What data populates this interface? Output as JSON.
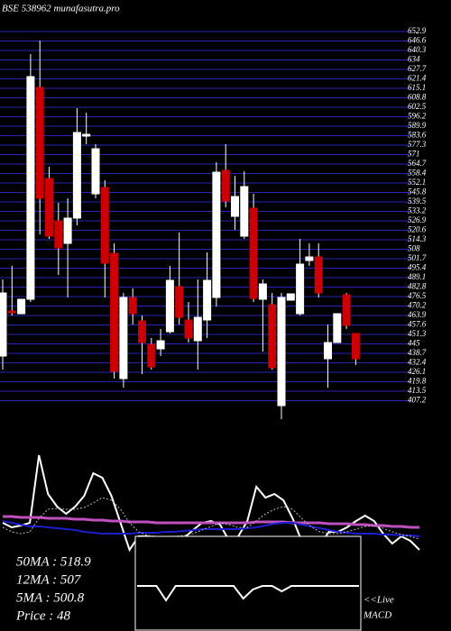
{
  "chart_data": [
    {
      "type": "candlestick",
      "title": "BSE 538962 munafasutra.pro",
      "open": [
        436.9,
        466.9,
        465.1,
        474.7,
        615.7,
        555.1,
        526.9,
        511.9,
        528.7,
        583.3,
        544.9,
        549.1,
        505.3,
        421.9,
        475.9,
        460.3,
        444.7,
        441.7,
        453.1,
        483.1,
        460.9,
        447.1,
        460.9,
        475.9,
        560.5,
        529.9,
        516.7,
        535.3,
        474.7,
        471.1,
        403.9,
        474.1,
        465.1,
        500.5,
        502.9,
        435.1,
        445.9,
        477.7,
        451.9
      ],
      "close": [
        478.9,
        465.7,
        474.7,
        622.9,
        541.9,
        516.7,
        508.9,
        528.7,
        585.7,
        584.5,
        574.9,
        498.7,
        426.7,
        475.9,
        465.1,
        445.9,
        429.7,
        447.1,
        487.3,
        462.7,
        448.9,
        462.7,
        487.3,
        559.3,
        540.1,
        543.1,
        549.7,
        475.3,
        484.9,
        429.1,
        475.9,
        478.3,
        498.1,
        502.9,
        478.9,
        445.9,
        465.1,
        457.3,
        435.1
      ],
      "high": [
        487.9,
        496.9,
        474.7,
        637.9,
        646.9,
        562.9,
        538.9,
        541.9,
        601.9,
        598.9,
        577.9,
        553.9,
        511.9,
        478.9,
        481.9,
        463.9,
        448.9,
        454.9,
        496.9,
        519.1,
        472.9,
        487.9,
        505.9,
        565.9,
        577.9,
        556.9,
        559.9,
        544.9,
        487.9,
        478.9,
        478.9,
        478.3,
        514.9,
        511.9,
        511.9,
        457.9,
        465.1,
        478.9,
        451.9
      ],
      "low": [
        427.9,
        463.9,
        465.1,
        472.9,
        517.9,
        514.9,
        490.9,
        475.9,
        523.9,
        577.9,
        541.9,
        475.9,
        421.9,
        415.9,
        457.9,
        424.9,
        427.9,
        436.9,
        451.9,
        457.9,
        445.9,
        427.9,
        448.9,
        469.9,
        535.9,
        520.9,
        514.9,
        472.9,
        439.9,
        427.9,
        394.9,
        474.1,
        463.9,
        496.9,
        475.9,
        415.9,
        445.9,
        454.9,
        430.9
      ],
      "up_color": "#ffffff",
      "down_color": "#cc0000",
      "grid": true,
      "grid_color": "#2626b8",
      "ylim": [
        394.9,
        673.9
      ],
      "yticks": [
        652.9,
        646.6,
        640.3,
        634,
        627.7,
        621.4,
        615.1,
        608.8,
        602.5,
        596.2,
        589.9,
        583.6,
        577.3,
        571,
        564.7,
        558.4,
        552.1,
        545.8,
        539.5,
        533.2,
        526.9,
        520.6,
        514.3,
        508,
        501.7,
        495.4,
        489.1,
        482.8,
        476.5,
        470.2,
        463.9,
        457.6,
        451.3,
        445,
        438.7,
        432.4,
        426.1,
        419.8,
        413.5,
        407.2
      ]
    },
    {
      "type": "line",
      "ylim": [
        0,
        140
      ],
      "series": [
        {
          "color": "#ffffff",
          "values": [
            40,
            35,
            37,
            40,
            115,
            72,
            58,
            50,
            58,
            70,
            95,
            90,
            70,
            40,
            10,
            25,
            25,
            20,
            22,
            20,
            23,
            32,
            40,
            42,
            38,
            20,
            25,
            42,
            80,
            68,
            72,
            65,
            45,
            20,
            22,
            15,
            30,
            30,
            35,
            42,
            48,
            42,
            28,
            17,
            25,
            20,
            10
          ]
        },
        {
          "color": "#c050c0",
          "values": [
            47,
            47,
            46,
            46,
            46,
            45,
            45,
            45,
            44,
            44,
            43,
            43,
            42,
            42,
            41,
            41,
            41,
            40,
            40,
            40,
            40,
            40,
            40,
            40,
            40,
            40,
            40,
            40,
            41,
            41,
            41,
            41,
            40,
            40,
            40,
            40,
            39,
            39,
            39,
            38,
            38,
            37,
            37,
            36,
            36,
            35,
            35
          ]
        },
        {
          "color": "#1c1cd0",
          "values": [
            42,
            40,
            38,
            36,
            36,
            35,
            34,
            33,
            32,
            30,
            29,
            28,
            28,
            28,
            28,
            29,
            29,
            29,
            30,
            30,
            31,
            32,
            33,
            33,
            33,
            33,
            33,
            34,
            35,
            37,
            39,
            40,
            40,
            38,
            36,
            34,
            32,
            30,
            29,
            28,
            28,
            28,
            27,
            27,
            26,
            26,
            25
          ]
        },
        {
          "color": "#bbbbbb",
          "dashed": true,
          "values": [
            35,
            30,
            28,
            30,
            45,
            55,
            56,
            55,
            55,
            57,
            62,
            68,
            65,
            55,
            40,
            30,
            26,
            25,
            24,
            25,
            26,
            28,
            32,
            36,
            40,
            38,
            35,
            35,
            42,
            50,
            55,
            58,
            55,
            45,
            36,
            30,
            28,
            28,
            30,
            33,
            36,
            37,
            34,
            30,
            27,
            25,
            22
          ]
        }
      ]
    },
    {
      "type": "line",
      "ylim": [
        -10,
        10
      ],
      "series": [
        {
          "color": "#ffffff",
          "values": [
            5,
            5,
            5,
            -3,
            5,
            5,
            5,
            5,
            5,
            5,
            5,
            -2,
            3,
            5,
            5,
            2,
            5,
            5,
            5,
            5,
            5,
            5,
            5,
            5
          ]
        }
      ]
    }
  ],
  "annotations": [
    "50MA   : 518.9",
    "12MA   : 507",
    "5MA    : 500.8",
    "Price   : 48"
  ],
  "live_labels": [
    "<<Live",
    "MACD"
  ]
}
